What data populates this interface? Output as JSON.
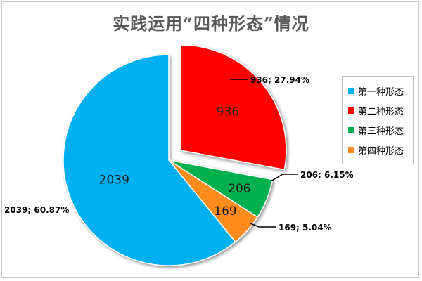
{
  "chart_data": {
    "type": "pie",
    "title": "实践运用“四种形态”情况",
    "legend_position": "right",
    "slices": [
      {
        "name": "第一种形态",
        "value": 2039,
        "percent": "60.87%",
        "label": "2039",
        "callout": "2039; 60.87%",
        "color": "#00b0f0",
        "exploded": false
      },
      {
        "name": "第二种形态",
        "value": 936,
        "percent": "27.94%",
        "label": "936",
        "callout": "936; 27.94%",
        "color": "#ff0000",
        "exploded": true
      },
      {
        "name": "第三种形态",
        "value": 206,
        "percent": "6.15%",
        "label": "206",
        "callout": "206; 6.15%",
        "color": "#00b050",
        "exploded": false
      },
      {
        "name": "第四种形态",
        "value": 169,
        "percent": "5.04%",
        "label": "169",
        "callout": "169; 5.04%",
        "color": "#ff8c1a",
        "exploded": false
      }
    ]
  }
}
